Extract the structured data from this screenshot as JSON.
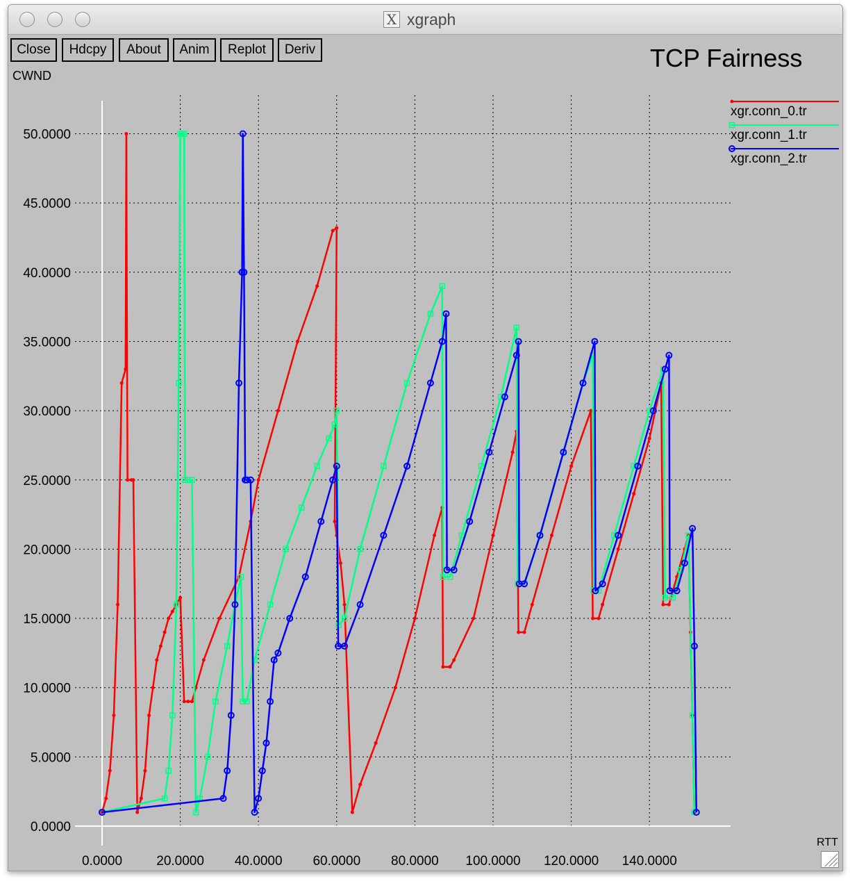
{
  "window": {
    "title": "xgraph",
    "buttons": [
      "Close",
      "Hdcpy",
      "About",
      "Anim",
      "Replot",
      "Deriv"
    ]
  },
  "chart_data": {
    "type": "line",
    "title": "TCP Fairness",
    "ylabel": "CWND",
    "xlabel": "RTT",
    "xlim": [
      0,
      160
    ],
    "ylim": [
      0,
      52
    ],
    "grid": true,
    "legend_position": "top-right",
    "x_ticks": [
      "0.0000",
      "20.0000",
      "40.0000",
      "60.0000",
      "80.0000",
      "100.0000",
      "120.0000",
      "140.0000"
    ],
    "y_ticks": [
      "0.0000",
      "5.0000",
      "10.0000",
      "15.0000",
      "20.0000",
      "25.0000",
      "30.0000",
      "35.0000",
      "40.0000",
      "45.0000",
      "50.0000"
    ],
    "series": [
      {
        "name": "xgr.conn_0.tr",
        "color": "#ff0000",
        "marker": "dot",
        "points": [
          [
            0,
            1
          ],
          [
            1,
            2
          ],
          [
            2,
            4
          ],
          [
            3,
            8
          ],
          [
            4,
            16
          ],
          [
            5,
            32
          ],
          [
            6,
            33
          ],
          [
            6.2,
            50
          ],
          [
            6.5,
            25
          ],
          [
            7.5,
            25
          ],
          [
            8,
            25
          ],
          [
            9,
            1
          ],
          [
            10,
            2
          ],
          [
            11,
            4
          ],
          [
            12,
            8
          ],
          [
            13,
            10
          ],
          [
            14,
            12
          ],
          [
            15,
            13
          ],
          [
            16,
            14
          ],
          [
            17,
            15
          ],
          [
            18,
            15.5
          ],
          [
            19,
            16
          ],
          [
            20,
            16.5
          ],
          [
            21,
            9
          ],
          [
            22,
            9
          ],
          [
            23,
            9
          ],
          [
            24,
            10
          ],
          [
            26,
            12
          ],
          [
            30,
            15
          ],
          [
            35,
            18
          ],
          [
            38,
            22
          ],
          [
            40,
            25
          ],
          [
            45,
            30
          ],
          [
            50,
            35
          ],
          [
            55,
            39
          ],
          [
            59,
            43
          ],
          [
            60,
            43.2
          ],
          [
            59.5,
            22
          ],
          [
            60,
            21
          ],
          [
            61,
            19
          ],
          [
            62,
            16
          ],
          [
            64,
            1
          ],
          [
            66,
            3
          ],
          [
            70,
            6
          ],
          [
            75,
            10
          ],
          [
            80,
            15
          ],
          [
            85,
            21
          ],
          [
            87,
            23
          ],
          [
            87.2,
            11.5
          ],
          [
            89,
            11.5
          ],
          [
            90,
            12
          ],
          [
            95,
            15
          ],
          [
            100,
            21
          ],
          [
            105,
            27
          ],
          [
            106,
            28.5
          ],
          [
            106.5,
            14
          ],
          [
            108,
            14
          ],
          [
            110,
            16
          ],
          [
            115,
            21
          ],
          [
            120,
            26
          ],
          [
            125,
            30
          ],
          [
            125.5,
            15
          ],
          [
            127,
            15
          ],
          [
            128,
            16
          ],
          [
            132,
            20
          ],
          [
            136,
            24
          ],
          [
            140,
            28
          ],
          [
            143,
            32
          ],
          [
            143.5,
            16
          ],
          [
            145,
            16
          ],
          [
            147,
            18
          ],
          [
            149,
            20
          ],
          [
            150,
            21
          ],
          [
            150.5,
            14
          ],
          [
            151,
            8
          ],
          [
            151.5,
            1
          ]
        ]
      },
      {
        "name": "xgr.conn_1.tr",
        "color": "#00ff88",
        "marker": "square",
        "points": [
          [
            0,
            1
          ],
          [
            16,
            2
          ],
          [
            17,
            4
          ],
          [
            18,
            8
          ],
          [
            19,
            16
          ],
          [
            19.6,
            32
          ],
          [
            20,
            50
          ],
          [
            20.5,
            50
          ],
          [
            21,
            50
          ],
          [
            21.2,
            25
          ],
          [
            22,
            25
          ],
          [
            23,
            25
          ],
          [
            24,
            1
          ],
          [
            25,
            2
          ],
          [
            27,
            5
          ],
          [
            29,
            9
          ],
          [
            32,
            13
          ],
          [
            34,
            16
          ],
          [
            35.5,
            18
          ],
          [
            36,
            9
          ],
          [
            37,
            9
          ],
          [
            39,
            12
          ],
          [
            43,
            16
          ],
          [
            47,
            20
          ],
          [
            51,
            23
          ],
          [
            55,
            26
          ],
          [
            58,
            28
          ],
          [
            59.5,
            29
          ],
          [
            60,
            30
          ],
          [
            60.5,
            14.5
          ],
          [
            62,
            15
          ],
          [
            66,
            20
          ],
          [
            72,
            26
          ],
          [
            78,
            32
          ],
          [
            84,
            37
          ],
          [
            87,
            39
          ],
          [
            87.2,
            18
          ],
          [
            89,
            18
          ],
          [
            92,
            21
          ],
          [
            97,
            26
          ],
          [
            102,
            31
          ],
          [
            106,
            36
          ],
          [
            106.3,
            17.5
          ],
          [
            108,
            17.5
          ],
          [
            112,
            21
          ],
          [
            118,
            27
          ],
          [
            123,
            32
          ],
          [
            125.5,
            34
          ],
          [
            125.7,
            17
          ],
          [
            127,
            17
          ],
          [
            131,
            21
          ],
          [
            136,
            26
          ],
          [
            140,
            30
          ],
          [
            143.5,
            33
          ],
          [
            144,
            16.5
          ],
          [
            146,
            16.5
          ],
          [
            148,
            18.5
          ],
          [
            150,
            21
          ],
          [
            151,
            8
          ],
          [
            151.5,
            1
          ]
        ]
      },
      {
        "name": "xgr.conn_2.tr",
        "color": "#0000ff",
        "marker": "circle",
        "points": [
          [
            0,
            1
          ],
          [
            31,
            2
          ],
          [
            32,
            4
          ],
          [
            33,
            8
          ],
          [
            34,
            16
          ],
          [
            35,
            32
          ],
          [
            35.8,
            40
          ],
          [
            36,
            50
          ],
          [
            36.3,
            40
          ],
          [
            36.6,
            25
          ],
          [
            37,
            25
          ],
          [
            38,
            25
          ],
          [
            39,
            1
          ],
          [
            40,
            2
          ],
          [
            41,
            4
          ],
          [
            42,
            6
          ],
          [
            43,
            9
          ],
          [
            44,
            12
          ],
          [
            45,
            12.5
          ],
          [
            48,
            15
          ],
          [
            52,
            18
          ],
          [
            56,
            22
          ],
          [
            59,
            25
          ],
          [
            60,
            26
          ],
          [
            60.4,
            13
          ],
          [
            62,
            13
          ],
          [
            66,
            16
          ],
          [
            72,
            21
          ],
          [
            78,
            26
          ],
          [
            84,
            32
          ],
          [
            87,
            35
          ],
          [
            88,
            37
          ],
          [
            88.2,
            18.5
          ],
          [
            90,
            18.5
          ],
          [
            94,
            22
          ],
          [
            99,
            27
          ],
          [
            103,
            31
          ],
          [
            106,
            34
          ],
          [
            106.5,
            35
          ],
          [
            106.7,
            17.5
          ],
          [
            108,
            17.5
          ],
          [
            112,
            21
          ],
          [
            118,
            27
          ],
          [
            123,
            32
          ],
          [
            126,
            35
          ],
          [
            126.2,
            17
          ],
          [
            128,
            17.5
          ],
          [
            132,
            21
          ],
          [
            137,
            26
          ],
          [
            141,
            30
          ],
          [
            144,
            33
          ],
          [
            145,
            34
          ],
          [
            145.2,
            17
          ],
          [
            147,
            17
          ],
          [
            149,
            19
          ],
          [
            151,
            21.5
          ],
          [
            151.5,
            13
          ],
          [
            152,
            1
          ]
        ]
      }
    ]
  }
}
